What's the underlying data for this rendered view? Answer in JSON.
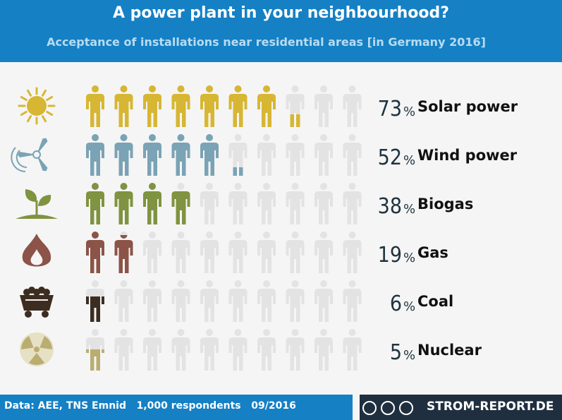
{
  "header": {
    "title": "A power plant in your neighbourhood?",
    "subtitle": "Acceptance of installations near residential areas [in Germany 2016]"
  },
  "chart_data": {
    "type": "pictograph",
    "title": "A power plant in your neighbourhood?",
    "subtitle": "Acceptance of installations near residential areas [in Germany 2016]",
    "unit": "%",
    "icons_per_row": 10,
    "empty_color": "#e3e3e3",
    "rows": [
      {
        "label": "Solar power",
        "value": 73,
        "value_text": "73",
        "color": "#d7b633",
        "icon": "sun-icon"
      },
      {
        "label": "Wind power",
        "value": 52,
        "value_text": "52",
        "color": "#7aa3b5",
        "icon": "wind-turbine-icon"
      },
      {
        "label": "Biogas",
        "value": 38,
        "value_text": "38",
        "color": "#7f9340",
        "icon": "sprout-icon"
      },
      {
        "label": "Gas",
        "value": 19,
        "value_text": "19",
        "color": "#8c5348",
        "icon": "flame-icon"
      },
      {
        "label": "Coal",
        "value": 6,
        "value_text": "6",
        "color": "#3d2d20",
        "icon": "coal-cart-icon"
      },
      {
        "label": "Nuclear",
        "value": 5,
        "value_text": "5",
        "color": "#b9ad72",
        "icon": "radiation-icon"
      }
    ]
  },
  "footer": {
    "source": "Data: AEE, TNS Emnid   1,000 respondents   09/2016",
    "brand": "STROM-REPORT.DE"
  }
}
